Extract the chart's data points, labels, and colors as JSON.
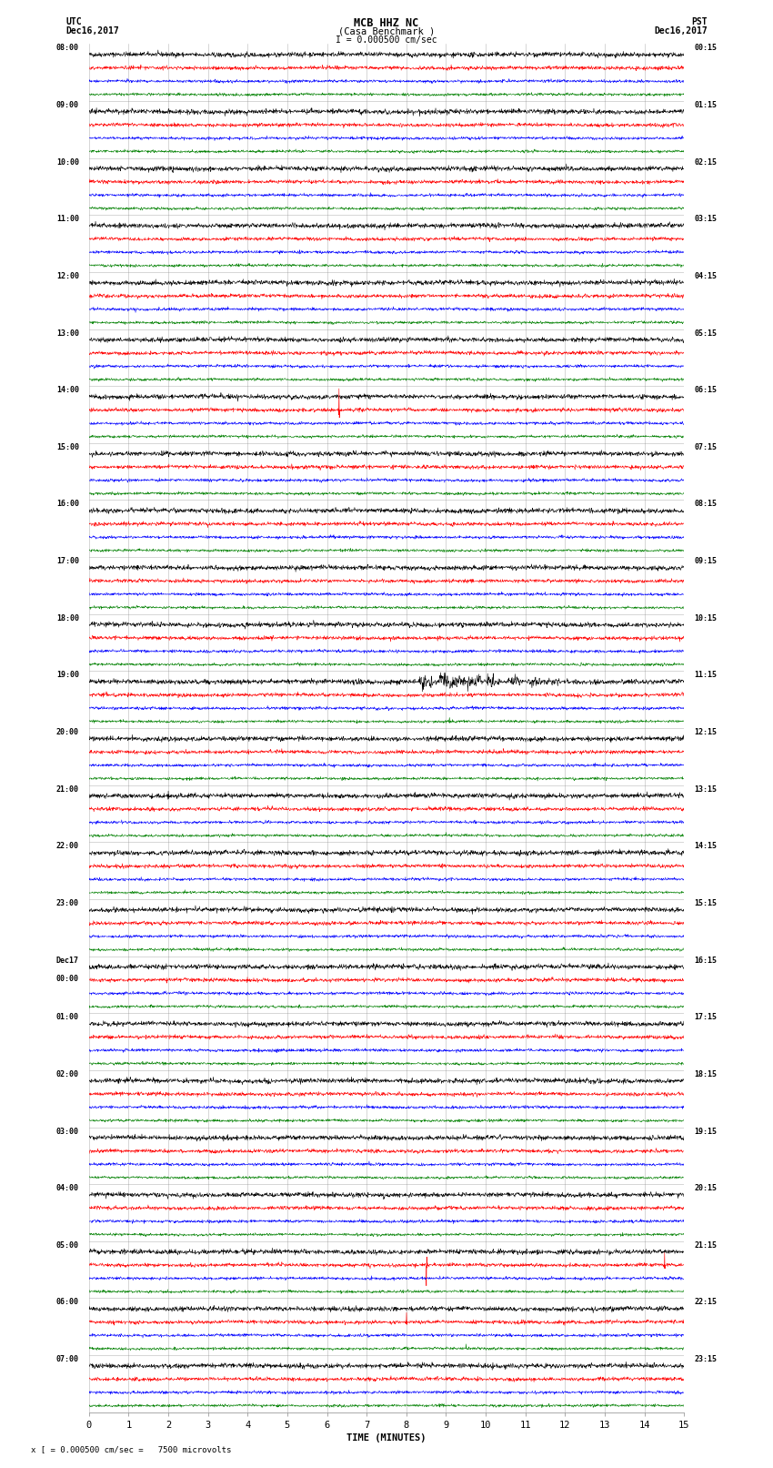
{
  "title_line1": "MCB HHZ NC",
  "title_line2": "(Casa Benchmark )",
  "title_line3": "I = 0.000500 cm/sec",
  "left_label_top": "UTC",
  "left_label_date": "Dec16,2017",
  "right_label_top": "PST",
  "right_label_date": "Dec16,2017",
  "xlabel": "TIME (MINUTES)",
  "footer": "x [ = 0.000500 cm/sec =   7500 microvolts",
  "utc_times": [
    "08:00",
    "09:00",
    "10:00",
    "11:00",
    "12:00",
    "13:00",
    "14:00",
    "15:00",
    "16:00",
    "17:00",
    "18:00",
    "19:00",
    "20:00",
    "21:00",
    "22:00",
    "23:00",
    "Dec17\n00:00",
    "01:00",
    "02:00",
    "03:00",
    "04:00",
    "05:00",
    "06:00",
    "07:00"
  ],
  "pst_times": [
    "00:15",
    "01:15",
    "02:15",
    "03:15",
    "04:15",
    "05:15",
    "06:15",
    "07:15",
    "08:15",
    "09:15",
    "10:15",
    "11:15",
    "12:15",
    "13:15",
    "14:15",
    "15:15",
    "16:15",
    "17:15",
    "18:15",
    "19:15",
    "20:15",
    "21:15",
    "22:15",
    "23:15"
  ],
  "n_rows": 24,
  "n_traces_per_row": 4,
  "trace_colors": [
    "black",
    "red",
    "blue",
    "green"
  ],
  "bg_color": "white",
  "grid_color": "#888888",
  "xmin": 0,
  "xmax": 15,
  "xticks": [
    0,
    1,
    2,
    3,
    4,
    5,
    6,
    7,
    8,
    9,
    10,
    11,
    12,
    13,
    14,
    15
  ]
}
